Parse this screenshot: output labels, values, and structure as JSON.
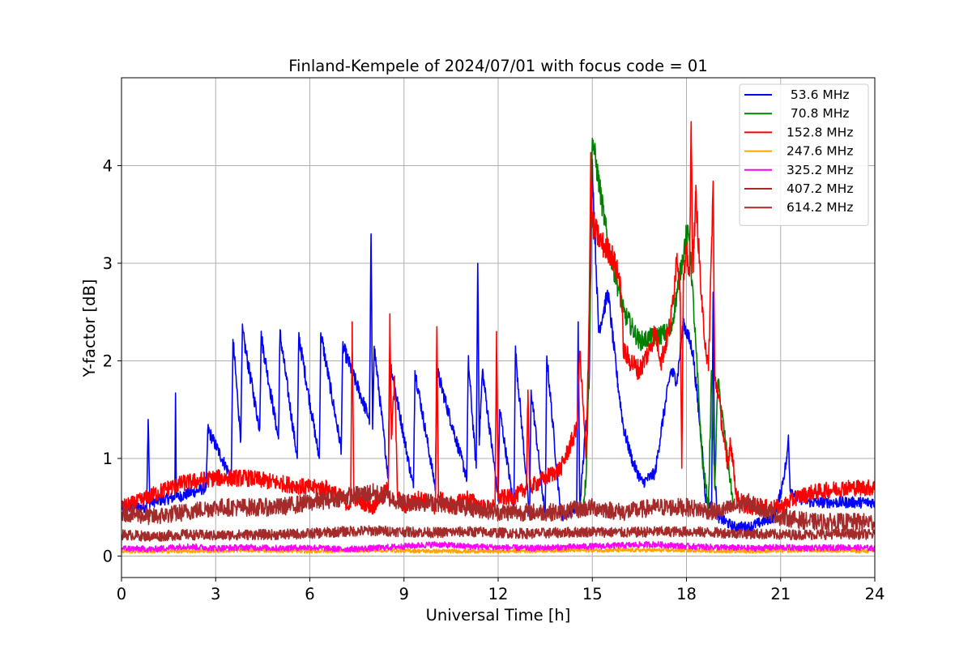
{
  "chart_data": {
    "type": "line",
    "title": "Finland-Kempele of 2024/07/01 with focus code = 01",
    "xlabel": "Universal Time [h]",
    "ylabel": "Y-factor [dB]",
    "xlim": [
      0,
      24
    ],
    "ylim": [
      -0.22,
      4.9
    ],
    "xticks": [
      0,
      3,
      6,
      9,
      12,
      15,
      18,
      21,
      24
    ],
    "yticks": [
      0,
      1,
      2,
      3,
      4
    ],
    "grid": true,
    "legend_position": "top-right",
    "series": [
      {
        "name": " 53.6 MHz",
        "color": "#0000ff",
        "x": [
          0,
          0.8,
          0.85,
          0.9,
          1.7,
          1.72,
          1.75,
          2.7,
          2.75,
          3.5,
          3.55,
          3.8,
          3.85,
          4.4,
          4.45,
          5.0,
          5.05,
          5.6,
          5.65,
          6.3,
          6.35,
          7.0,
          7.05,
          7.9,
          7.95,
          8.0,
          8.05,
          8.5,
          8.55,
          9.3,
          9.35,
          10.0,
          10.05,
          11.0,
          11.05,
          11.3,
          11.35,
          11.4,
          11.5,
          12.0,
          12.05,
          12.5,
          12.55,
          13.0,
          13.05,
          13.5,
          13.55,
          14.0,
          14.5,
          14.55,
          14.6,
          14.9,
          15.0,
          15.2,
          15.5,
          15.8,
          16.0,
          16.3,
          16.6,
          17.0,
          17.2,
          17.5,
          17.7,
          17.9,
          18.2,
          18.5,
          18.6,
          18.8,
          18.85,
          18.9,
          19.0,
          19.5,
          20.0,
          20.8,
          21.0,
          21.2,
          21.25,
          21.3,
          21.5,
          22.0,
          23.0,
          24.0
        ],
        "y": [
          0.5,
          0.5,
          1.4,
          0.55,
          0.6,
          1.67,
          0.6,
          0.7,
          1.3,
          0.8,
          2.22,
          1.2,
          2.3,
          1.3,
          2.25,
          1.2,
          2.28,
          1.0,
          2.25,
          1.0,
          2.28,
          1.1,
          2.15,
          1.4,
          3.3,
          1.3,
          2.15,
          0.8,
          2.0,
          0.7,
          1.9,
          0.7,
          1.9,
          0.8,
          2.0,
          0.9,
          3.0,
          1.2,
          1.9,
          0.6,
          1.5,
          0.5,
          2.1,
          0.4,
          1.7,
          0.4,
          2.05,
          0.4,
          0.5,
          2.4,
          0.5,
          1.8,
          4.0,
          2.3,
          2.7,
          1.8,
          1.3,
          0.95,
          0.75,
          0.85,
          1.3,
          1.9,
          1.8,
          2.4,
          2.1,
          1.1,
          0.6,
          0.5,
          2.7,
          0.8,
          0.4,
          0.3,
          0.3,
          0.4,
          0.65,
          1.0,
          1.24,
          0.7,
          0.6,
          0.55,
          0.55,
          0.55
        ]
      },
      {
        "name": " 70.8 MHz",
        "color": "#008000",
        "x": [
          14.7,
          14.8,
          14.9,
          15.0,
          15.5,
          16.0,
          16.5,
          17.0,
          17.5,
          18.0,
          18.1,
          18.5,
          18.7,
          18.8,
          18.9,
          19.0,
          19.5
        ],
        "y": [
          0.5,
          0.8,
          2.0,
          4.28,
          3.2,
          2.5,
          2.2,
          2.25,
          2.3,
          3.3,
          3.25,
          1.0,
          0.5,
          1.9,
          0.7,
          1.8,
          0.5
        ]
      },
      {
        "name": "152.8 MHz",
        "color": "#ff0000",
        "x": [
          0,
          0.5,
          0.8,
          1.5,
          2.0,
          3.0,
          4.0,
          5.0,
          6.0,
          6.5,
          7.0,
          7.3,
          7.35,
          7.4,
          8.0,
          8.5,
          8.55,
          8.6,
          8.7,
          8.8,
          9.0,
          9.5,
          10.0,
          10.05,
          10.1,
          10.5,
          11.0,
          11.5,
          11.9,
          11.95,
          12.0,
          12.5,
          12.9,
          12.95,
          13.0,
          13.5,
          14.0,
          14.5,
          14.6,
          14.8,
          14.9,
          14.95,
          15.0,
          15.3,
          15.6,
          15.9,
          16.0,
          16.2,
          16.5,
          16.8,
          17.0,
          17.2,
          17.5,
          17.7,
          17.8,
          17.85,
          17.9,
          18.0,
          18.1,
          18.15,
          18.2,
          18.3,
          18.5,
          18.7,
          18.85,
          18.9,
          19.0,
          19.3,
          19.4,
          19.6,
          20.0,
          20.5,
          21.0,
          21.5,
          22.0,
          23.0,
          24.0
        ],
        "y": [
          0.5,
          0.55,
          0.6,
          0.7,
          0.75,
          0.8,
          0.8,
          0.75,
          0.7,
          0.7,
          0.6,
          0.5,
          2.4,
          0.6,
          0.5,
          0.7,
          2.48,
          1.2,
          1.8,
          0.6,
          0.5,
          0.6,
          0.5,
          2.35,
          0.6,
          0.5,
          0.6,
          0.5,
          0.5,
          2.3,
          0.6,
          0.6,
          0.7,
          1.7,
          0.7,
          0.8,
          0.9,
          1.3,
          2.1,
          1.0,
          2.5,
          4.05,
          3.4,
          3.2,
          3.1,
          2.8,
          2.1,
          2.0,
          1.9,
          2.1,
          2.3,
          2.0,
          2.4,
          3.1,
          2.7,
          0.9,
          2.8,
          3.1,
          2.9,
          4.45,
          2.9,
          3.7,
          2.5,
          1.9,
          3.84,
          1.8,
          1.7,
          0.9,
          1.2,
          0.6,
          0.5,
          0.5,
          0.5,
          0.6,
          0.65,
          0.7,
          0.7
        ]
      },
      {
        "name": "247.6 MHz",
        "color": "#ffa500",
        "x": [
          0,
          2,
          4,
          6,
          8,
          10,
          12,
          14,
          16,
          18,
          20,
          22,
          24
        ],
        "y": [
          0.05,
          0.05,
          0.06,
          0.05,
          0.06,
          0.05,
          0.05,
          0.06,
          0.06,
          0.06,
          0.05,
          0.06,
          0.05
        ]
      },
      {
        "name": "325.2 MHz",
        "color": "#ff00ff",
        "x": [
          0,
          1,
          2,
          3,
          4,
          5,
          6,
          7,
          8,
          9,
          10,
          11,
          12,
          13,
          14,
          15,
          16,
          17,
          18,
          19,
          20,
          21,
          22,
          23,
          24
        ],
        "y": [
          0.08,
          0.07,
          0.1,
          0.08,
          0.09,
          0.08,
          0.09,
          0.07,
          0.08,
          0.1,
          0.12,
          0.1,
          0.09,
          0.08,
          0.09,
          0.1,
          0.11,
          0.12,
          0.1,
          0.09,
          0.08,
          0.09,
          0.08,
          0.09,
          0.08
        ]
      },
      {
        "name": "407.2 MHz",
        "color": "#a52a2a",
        "x": [
          0,
          1,
          2,
          3,
          4,
          5,
          6,
          7,
          8,
          9,
          10,
          11,
          12,
          13,
          14,
          15,
          16,
          17,
          18,
          19,
          20,
          21,
          22,
          23,
          24
        ],
        "y": [
          0.22,
          0.2,
          0.22,
          0.21,
          0.22,
          0.22,
          0.23,
          0.25,
          0.26,
          0.25,
          0.24,
          0.25,
          0.24,
          0.23,
          0.24,
          0.25,
          0.24,
          0.25,
          0.25,
          0.24,
          0.23,
          0.22,
          0.22,
          0.23,
          0.22
        ]
      },
      {
        "name": "614.2 MHz",
        "color": "#a52a2a",
        "x": [
          0,
          1,
          2,
          3,
          4,
          5,
          6,
          7,
          8,
          9,
          10,
          11,
          12,
          13,
          14,
          15,
          16,
          17,
          18,
          19,
          20,
          21,
          22,
          23,
          24
        ],
        "y": [
          0.45,
          0.4,
          0.45,
          0.5,
          0.5,
          0.5,
          0.55,
          0.6,
          0.65,
          0.55,
          0.55,
          0.5,
          0.45,
          0.45,
          0.45,
          0.5,
          0.45,
          0.5,
          0.5,
          0.45,
          0.55,
          0.4,
          0.35,
          0.35,
          0.35
        ]
      }
    ]
  }
}
